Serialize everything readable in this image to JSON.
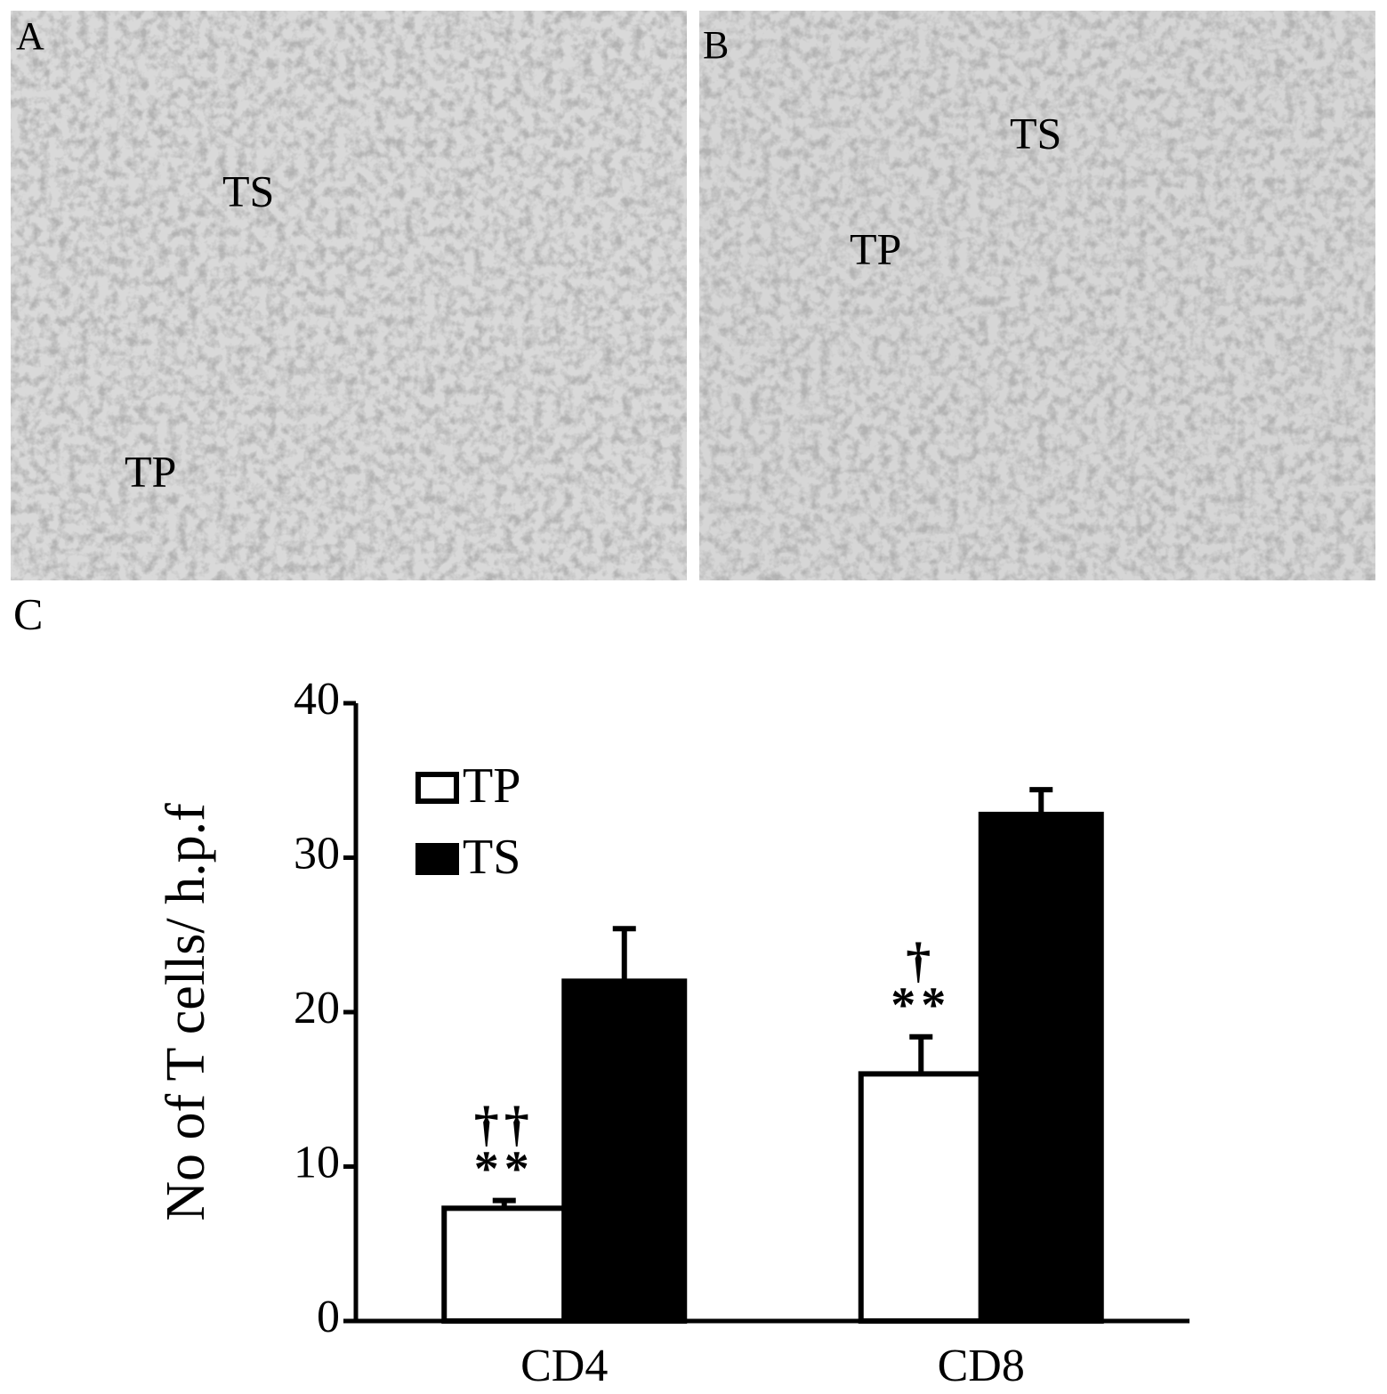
{
  "panels": [
    {
      "label": "A",
      "annotations": [
        "TS",
        "TP"
      ]
    },
    {
      "label": "B",
      "annotations": [
        "TS",
        "TP"
      ]
    }
  ],
  "chart_data": {
    "type": "bar",
    "panel_label": "C",
    "y_label": "No of T cells/ h.p.f",
    "categories": [
      "CD4",
      "CD8"
    ],
    "series": [
      {
        "name": "TP",
        "color": "#ffffff",
        "values": [
          7.3,
          16.0
        ],
        "errors": [
          0.5,
          2.4
        ]
      },
      {
        "name": "TS",
        "color": "#000000",
        "values": [
          22.0,
          32.8
        ],
        "errors": [
          3.4,
          1.6
        ]
      }
    ],
    "significance": [
      [
        "††",
        "**"
      ],
      [
        "†",
        "**"
      ]
    ],
    "ylim": [
      0,
      40
    ],
    "yticks": [
      0,
      10,
      20,
      30,
      40
    ],
    "grid": false,
    "legend": "upper left"
  }
}
